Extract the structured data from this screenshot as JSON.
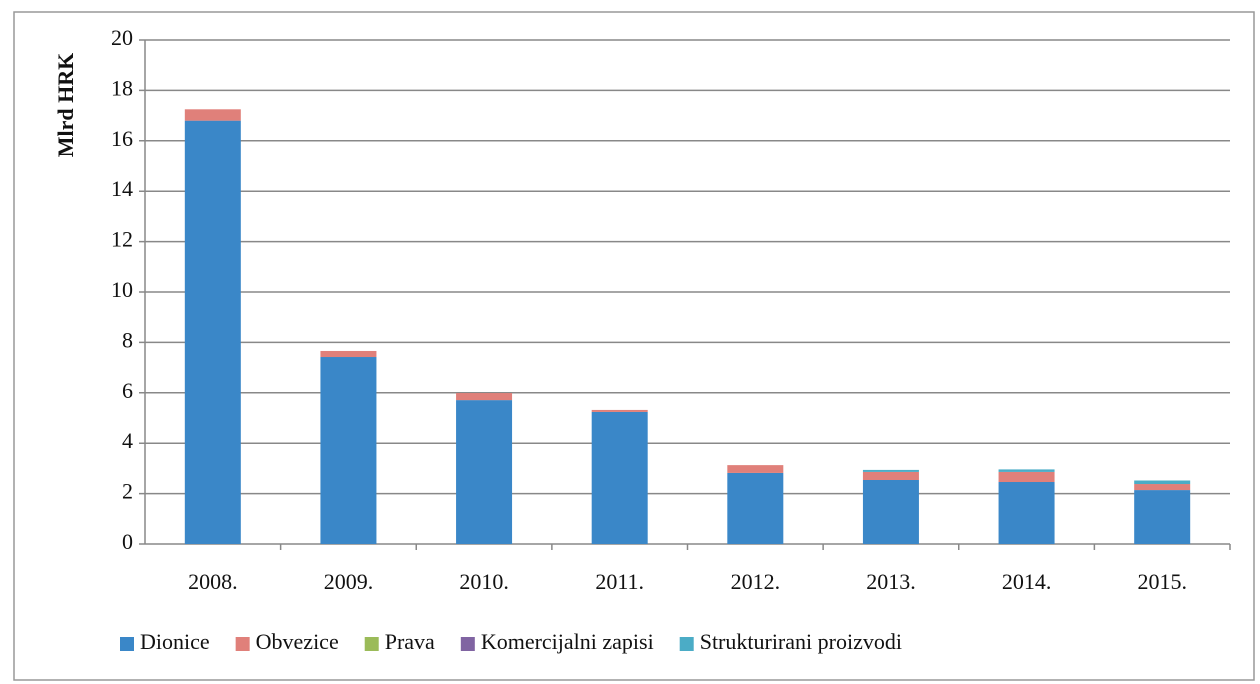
{
  "chart_data": {
    "type": "stacked_bar",
    "y_label": "Mlrd HRK",
    "categories": [
      "2008.",
      "2009.",
      "2010.",
      "2011.",
      "2012.",
      "2013.",
      "2014.",
      "2015."
    ],
    "series": [
      {
        "name": "Dionice",
        "color": "#3a87c8",
        "values": [
          16.8,
          7.42,
          5.71,
          5.24,
          2.82,
          2.54,
          2.46,
          2.14
        ]
      },
      {
        "name": "Obvezice",
        "color": "#e0807a",
        "values": [
          0.45,
          0.24,
          0.28,
          0.08,
          0.31,
          0.32,
          0.4,
          0.24
        ]
      },
      {
        "name": "Prava",
        "color": "#9bbb59",
        "values": [
          0,
          0,
          0,
          0,
          0,
          0,
          0,
          0
        ]
      },
      {
        "name": "Komercijalni zapisi",
        "color": "#8064a2",
        "values": [
          0,
          0,
          0,
          0,
          0,
          0,
          0,
          0
        ]
      },
      {
        "name": "Strukturirani proizvodi",
        "color": "#4bacc6",
        "values": [
          0,
          0,
          0,
          0,
          0,
          0.08,
          0.1,
          0.14
        ]
      }
    ],
    "ylim": [
      0,
      20
    ],
    "yticks": [
      0,
      2,
      4,
      6,
      8,
      10,
      12,
      14,
      16,
      18,
      20
    ],
    "grid": true,
    "legend": "bottom"
  }
}
